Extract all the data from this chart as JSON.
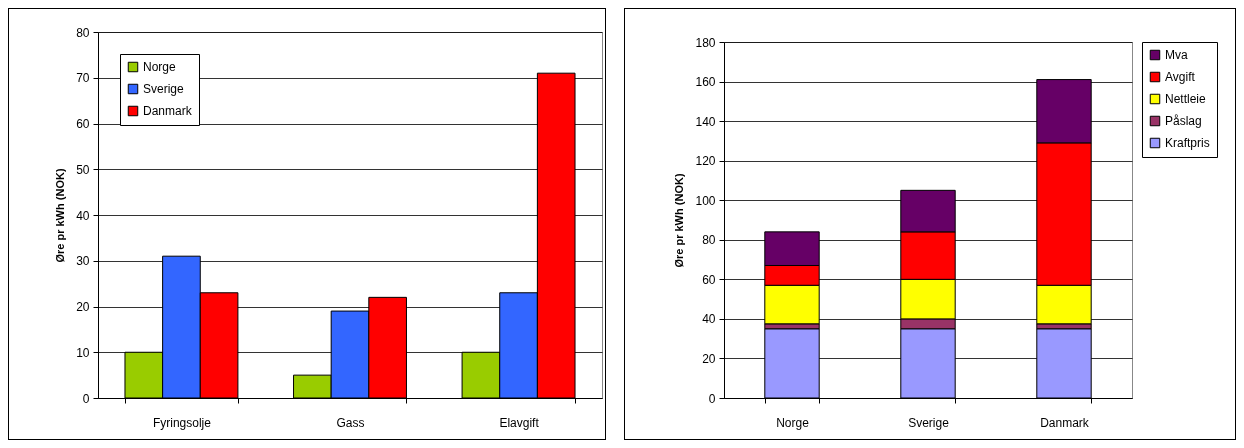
{
  "chart_data": [
    {
      "type": "bar",
      "ylabel": "Øre pr kWh (NOK)",
      "categories": [
        "Fyringsolje",
        "Gass",
        "Elavgift"
      ],
      "series": [
        {
          "name": "Norge",
          "color": "#99cc00",
          "values": [
            10,
            5,
            10
          ]
        },
        {
          "name": "Sverige",
          "color": "#3366ff",
          "values": [
            31,
            19,
            23
          ]
        },
        {
          "name": "Danmark",
          "color": "#ff0000",
          "values": [
            23,
            22,
            71
          ]
        }
      ],
      "ylim": [
        0,
        80
      ],
      "yticks": [
        0,
        10,
        20,
        30,
        40,
        50,
        60,
        70,
        80
      ],
      "grid": "y",
      "legend": "top left"
    },
    {
      "type": "bar",
      "stacked": true,
      "ylabel": "Øre pr kWh (NOK)",
      "categories": [
        "Norge",
        "Sverige",
        "Danmark"
      ],
      "series": [
        {
          "name": "Kraftpris",
          "color": "#9999ff",
          "values": [
            35,
            35,
            35
          ]
        },
        {
          "name": "Påslag",
          "color": "#993366",
          "values": [
            2.5,
            5,
            2.5
          ]
        },
        {
          "name": "Nettleie",
          "color": "#ffff00",
          "values": [
            19.5,
            20,
            19.5
          ]
        },
        {
          "name": "Avgift",
          "color": "#ff0000",
          "values": [
            10,
            24,
            72
          ]
        },
        {
          "name": "Mva",
          "color": "#660066",
          "values": [
            17,
            21,
            32
          ]
        }
      ],
      "ylim": [
        0,
        180
      ],
      "yticks": [
        0,
        20,
        40,
        60,
        80,
        100,
        120,
        140,
        160,
        180
      ],
      "grid": "y",
      "legend": "right"
    }
  ]
}
